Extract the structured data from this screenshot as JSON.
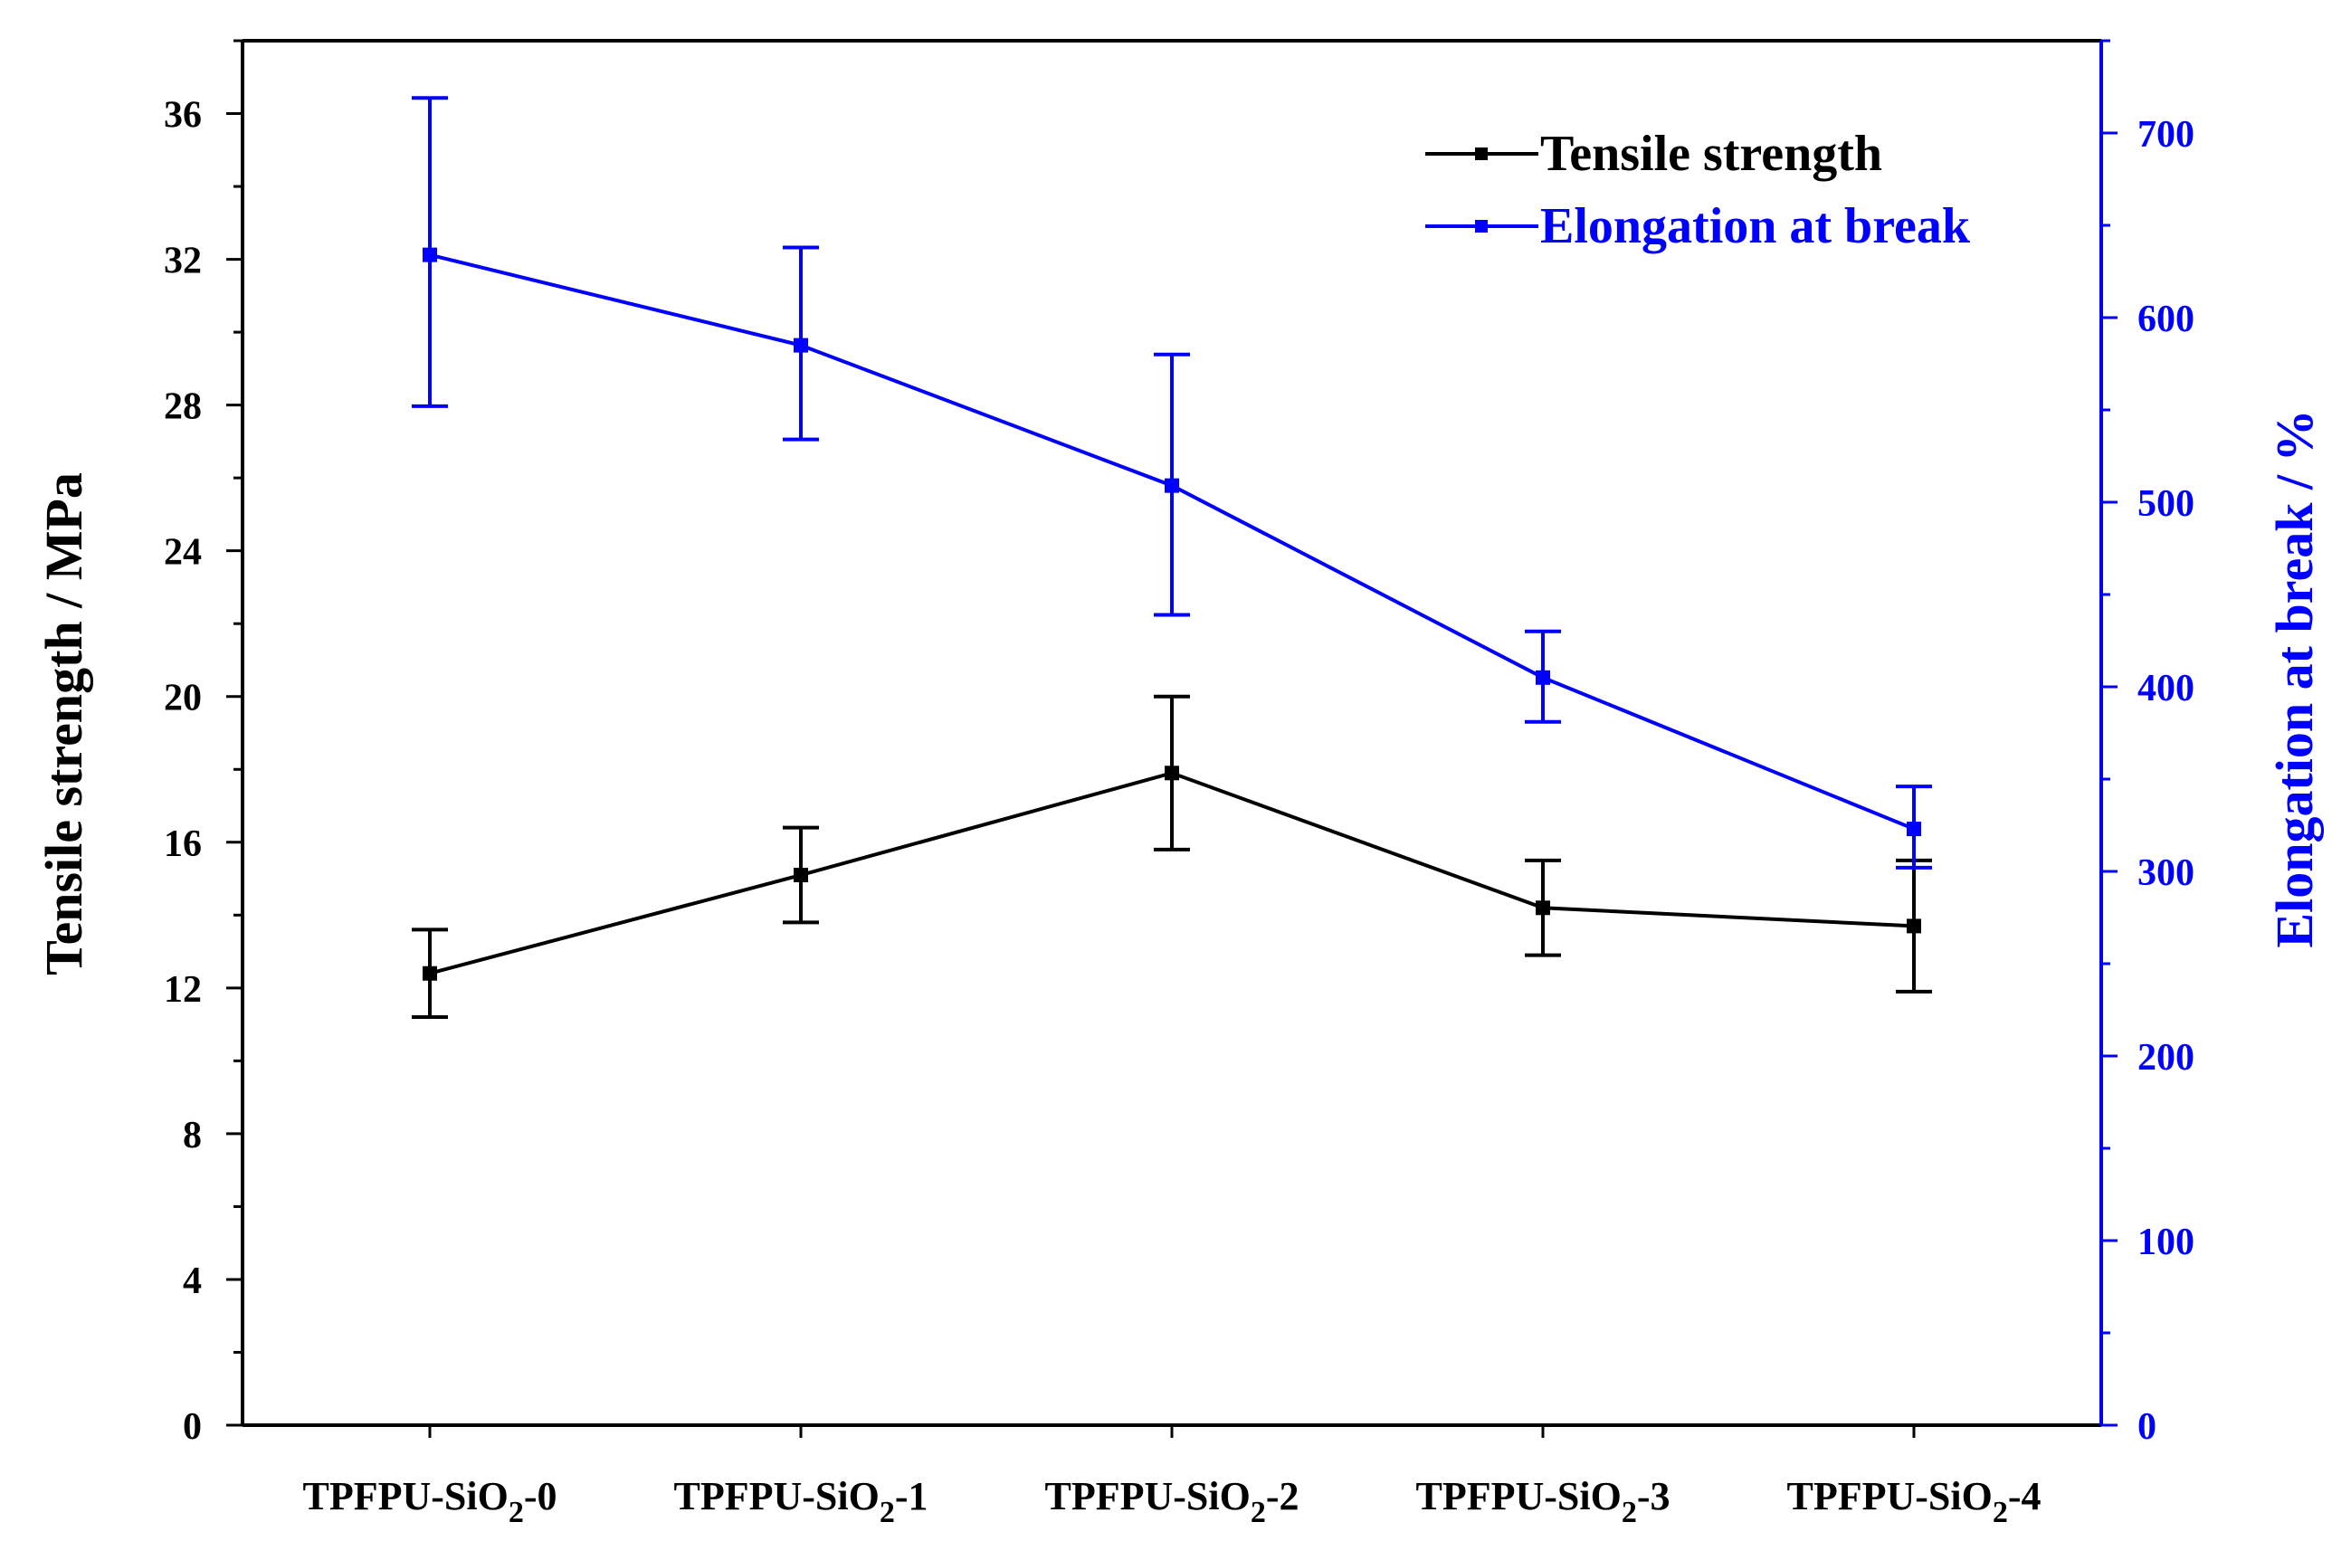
{
  "chart_data": {
    "type": "line",
    "title": "",
    "categories": [
      {
        "base": "TPFPU-SiO",
        "sub": "2",
        "suffix": "-0"
      },
      {
        "base": "TPFPU-SiO",
        "sub": "2",
        "suffix": "-1"
      },
      {
        "base": "TPFPU-SiO",
        "sub": "2",
        "suffix": "-2"
      },
      {
        "base": "TPFPU-SiO",
        "sub": "2",
        "suffix": "-3"
      },
      {
        "base": "TPFPU-SiO",
        "sub": "2",
        "suffix": "-4"
      }
    ],
    "category_labels": [
      "TPFPU-SiO2-0",
      "TPFPU-SiO2-1",
      "TPFPU-SiO2-2",
      "TPFPU-SiO2-3",
      "TPFPU-SiO2-4"
    ],
    "left_axis": {
      "label": "Tensile strength / MPa",
      "min": 0,
      "max": 38,
      "major_step": 4,
      "minor_step": 2,
      "ticks": [
        "0",
        "4",
        "8",
        "12",
        "16",
        "20",
        "24",
        "28",
        "32",
        "36"
      ],
      "color": "#000000"
    },
    "right_axis": {
      "label": "Elongation at break / %",
      "min": 0,
      "max": 750,
      "major_step": 100,
      "minor_step": 50,
      "ticks": [
        "0",
        "100",
        "200",
        "300",
        "400",
        "500",
        "600",
        "700"
      ],
      "color": "#0000ff"
    },
    "series": [
      {
        "name": "Tensile strength",
        "axis": "left",
        "color": "#000000",
        "values": [
          12.4,
          15.1,
          17.9,
          14.2,
          13.7
        ],
        "err_low": [
          11.2,
          13.8,
          15.8,
          12.9,
          11.9
        ],
        "err_high": [
          13.6,
          16.4,
          20.0,
          15.5,
          15.5
        ]
      },
      {
        "name": "Elongation at break",
        "axis": "right",
        "color": "#0000ff",
        "values": [
          634,
          585,
          509,
          405,
          323
        ],
        "err_low": [
          552,
          534,
          439,
          381,
          302
        ],
        "err_high": [
          719,
          638,
          580,
          430,
          346
        ]
      }
    ],
    "legend": {
      "position": "top-right"
    },
    "grid": false
  }
}
